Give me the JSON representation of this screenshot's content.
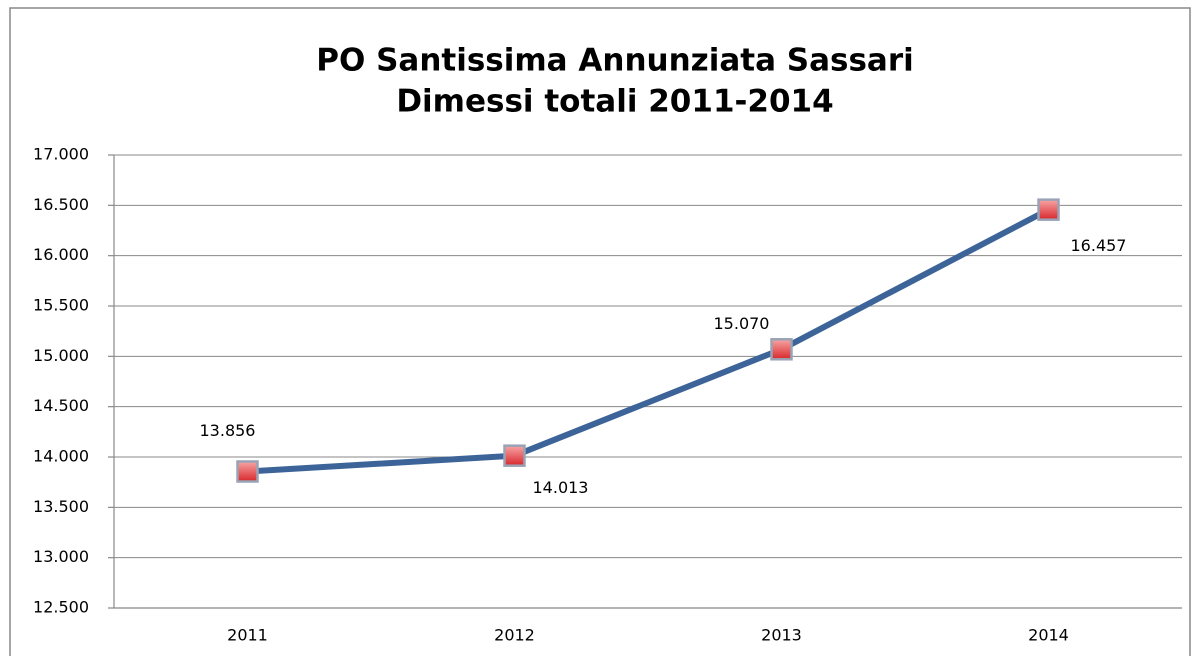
{
  "chart_data": {
    "type": "line",
    "title": "PO Santissima Annunziata Sassari",
    "subtitle": "Dimessi totali 2011-2014",
    "categories": [
      "2011",
      "2012",
      "2013",
      "2014"
    ],
    "series": [
      {
        "color": "#3d6498",
        "marker_color": "#e8474b",
        "values": [
          13856,
          14013,
          15070,
          16457
        ],
        "value_labels": [
          "13.856",
          "14.013",
          "15.070",
          "16.457"
        ]
      }
    ],
    "ylim": [
      12500,
      17000
    ],
    "yticks": [
      {
        "value": 12500,
        "label": "12.500"
      },
      {
        "value": 13000,
        "label": "13.000"
      },
      {
        "value": 13500,
        "label": "13.500"
      },
      {
        "value": 14000,
        "label": "14.000"
      },
      {
        "value": 14500,
        "label": "14.500"
      },
      {
        "value": 15000,
        "label": "15.000"
      },
      {
        "value": 15500,
        "label": "15.500"
      },
      {
        "value": 16000,
        "label": "16.000"
      },
      {
        "value": 16500,
        "label": "16.500"
      },
      {
        "value": 17000,
        "label": "17.000"
      }
    ],
    "grid": true
  }
}
